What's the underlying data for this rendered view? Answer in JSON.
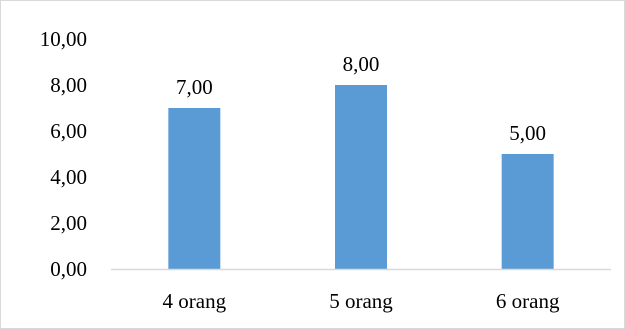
{
  "chart_data": {
    "type": "bar",
    "categories": [
      "4 orang",
      "5 orang",
      "6 orang"
    ],
    "values": [
      7,
      8,
      5
    ],
    "data_labels": [
      "7,00",
      "8,00",
      "5,00"
    ],
    "ylim": [
      0,
      10
    ],
    "y_ticks": [
      0,
      2,
      4,
      6,
      8,
      10
    ],
    "y_tick_labels": [
      "0,00",
      "2,00",
      "4,00",
      "6,00",
      "8,00",
      "10,00"
    ],
    "title": "",
    "xlabel": "",
    "ylabel": "",
    "grid": false,
    "legend": "none",
    "bar_color": "#5b9bd5",
    "axis_color": "#d9d9d9"
  }
}
